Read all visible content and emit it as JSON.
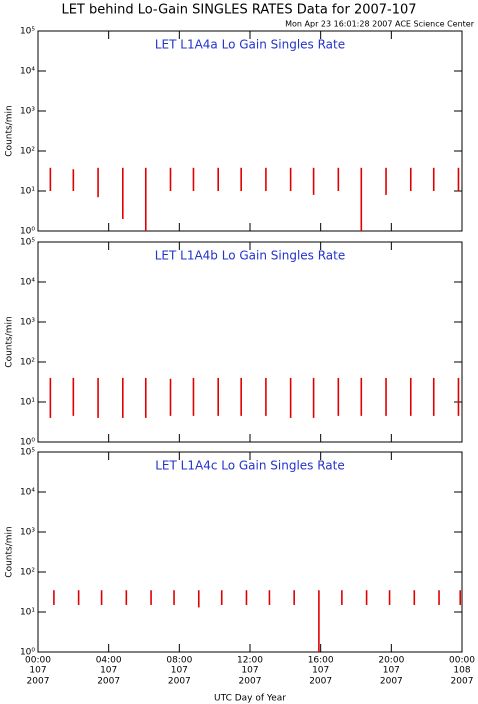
{
  "title": "LET behind Lo-Gain SINGLES RATES Data for 2007-107",
  "timestamp": "Mon Apr 23 16:01:28 2007 ACE Science Center",
  "chart_data": [
    {
      "type": "spike",
      "title": "LET L1A4a Lo Gain Singles Rate",
      "ylabel": "Counts/min",
      "color": "#e00000",
      "yscale": "log",
      "ylim": [
        1,
        100000
      ],
      "yticks": [
        {
          "value": 1,
          "label": "10⁰"
        },
        {
          "value": 10,
          "label": "10¹"
        },
        {
          "value": 100,
          "label": "10²"
        },
        {
          "value": 1000,
          "label": "10³"
        },
        {
          "value": 10000,
          "label": "10⁴"
        },
        {
          "value": 100000,
          "label": "10⁵"
        }
      ],
      "xlim": [
        0,
        24
      ],
      "xticks": [
        0,
        4,
        8,
        12,
        16,
        20,
        24
      ],
      "x": [
        0.7,
        2.0,
        3.4,
        4.8,
        6.1,
        7.5,
        8.8,
        10.2,
        11.5,
        12.9,
        14.3,
        15.6,
        17.0,
        18.3,
        19.7,
        21.1,
        22.4,
        23.8
      ],
      "high": [
        38,
        35,
        38,
        38,
        38,
        38,
        38,
        38,
        38,
        38,
        38,
        38,
        38,
        38,
        38,
        38,
        38,
        38
      ],
      "low": [
        10,
        10,
        7,
        2,
        1,
        10,
        10,
        10,
        10,
        10,
        10,
        8,
        10,
        1,
        8,
        10,
        10,
        10
      ]
    },
    {
      "type": "spike",
      "title": "LET L1A4b Lo Gain Singles Rate",
      "ylabel": "Counts/min",
      "color": "#e00000",
      "yscale": "log",
      "ylim": [
        1,
        100000
      ],
      "yticks": [
        {
          "value": 1,
          "label": "10⁰"
        },
        {
          "value": 10,
          "label": "10¹"
        },
        {
          "value": 100,
          "label": "10²"
        },
        {
          "value": 1000,
          "label": "10³"
        },
        {
          "value": 10000,
          "label": "10⁴"
        },
        {
          "value": 100000,
          "label": "10⁵"
        }
      ],
      "xlim": [
        0,
        24
      ],
      "xticks": [
        0,
        4,
        8,
        12,
        16,
        20,
        24
      ],
      "x": [
        0.7,
        2.0,
        3.4,
        4.8,
        6.1,
        7.5,
        8.8,
        10.2,
        11.5,
        12.9,
        14.3,
        15.6,
        17.0,
        18.3,
        19.7,
        21.1,
        22.4,
        23.8
      ],
      "high": [
        40,
        40,
        40,
        40,
        40,
        38,
        40,
        40,
        40,
        40,
        40,
        40,
        40,
        40,
        40,
        40,
        40,
        40
      ],
      "low": [
        4,
        4.5,
        4,
        4,
        4,
        4.5,
        4.5,
        4.5,
        4.5,
        4.5,
        4,
        4,
        4.5,
        4.5,
        4.5,
        4.5,
        4.5,
        4.5
      ]
    },
    {
      "type": "spike",
      "title": "LET L1A4c Lo Gain Singles Rate",
      "ylabel": "Counts/min",
      "color": "#e00000",
      "yscale": "log",
      "ylim": [
        1,
        100000
      ],
      "yticks": [
        {
          "value": 1,
          "label": "10⁰"
        },
        {
          "value": 10,
          "label": "10¹"
        },
        {
          "value": 100,
          "label": "10²"
        },
        {
          "value": 1000,
          "label": "10³"
        },
        {
          "value": 10000,
          "label": "10⁴"
        },
        {
          "value": 100000,
          "label": "10⁵"
        }
      ],
      "xlim": [
        0,
        24
      ],
      "xticks": [
        {
          "value": 0,
          "label": "00:00"
        },
        {
          "value": 4,
          "label": "04:00"
        },
        {
          "value": 8,
          "label": "08:00"
        },
        {
          "value": 12,
          "label": "12:00"
        },
        {
          "value": 16,
          "label": "16:00"
        },
        {
          "value": 20,
          "label": "20:00"
        },
        {
          "value": 24,
          "label": "00:00"
        }
      ],
      "xtick_days": [
        "107",
        "107",
        "107",
        "107",
        "107",
        "107",
        "108"
      ],
      "xtick_years": [
        "2007",
        "2007",
        "2007",
        "2007",
        "2007",
        "2007",
        "2007"
      ],
      "xlabel": "UTC Day of Year",
      "x": [
        0.9,
        2.3,
        3.6,
        5.0,
        6.4,
        7.7,
        9.1,
        10.4,
        11.8,
        13.1,
        14.5,
        15.9,
        17.2,
        18.6,
        19.9,
        21.3,
        22.7,
        23.9
      ],
      "high": [
        35,
        35,
        35,
        35,
        35,
        35,
        35,
        35,
        35,
        35,
        35,
        35,
        35,
        35,
        35,
        35,
        35,
        35
      ],
      "low": [
        15,
        15,
        15,
        15,
        15,
        15,
        13,
        15,
        15,
        15,
        15,
        1,
        15,
        15,
        15,
        15,
        15,
        15
      ]
    }
  ]
}
